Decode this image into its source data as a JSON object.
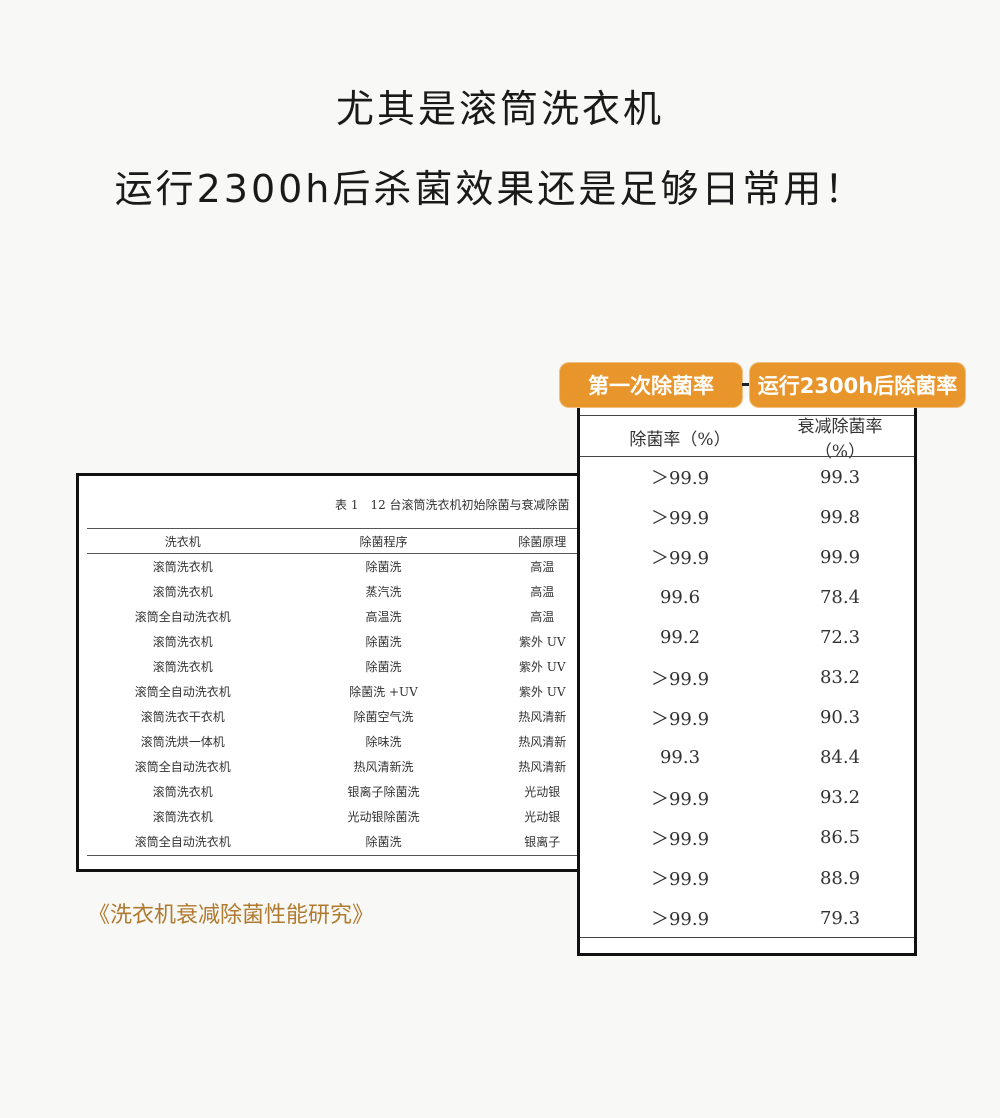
{
  "headline": {
    "line1": "尤其是滚筒洗衣机",
    "line2": "运行2300h后杀菌效果还是足够日常用！"
  },
  "accent_color": "#e8962c",
  "left_table": {
    "caption": "表 1　12 台滚筒洗衣机初始除菌与衰减除菌",
    "headers": [
      "洗衣机",
      "除菌程序",
      "除菌原理"
    ],
    "rows": [
      [
        "滚筒洗衣机",
        "除菌洗",
        "高温"
      ],
      [
        "滚筒洗衣机",
        "蒸汽洗",
        "高温"
      ],
      [
        "滚筒全自动洗衣机",
        "高温洗",
        "高温"
      ],
      [
        "滚筒洗衣机",
        "除菌洗",
        "紫外 UV"
      ],
      [
        "滚筒洗衣机",
        "除菌洗",
        "紫外 UV"
      ],
      [
        "滚筒全自动洗衣机",
        "除菌洗 +UV",
        "紫外 UV"
      ],
      [
        "滚筒洗衣干衣机",
        "除菌空气洗",
        "热风清新"
      ],
      [
        "滚筒洗烘一体机",
        "除味洗",
        "热风清新"
      ],
      [
        "滚筒全自动洗衣机",
        "热风清新洗",
        "热风清新"
      ],
      [
        "滚筒洗衣机",
        "银离子除菌洗",
        "光动银"
      ],
      [
        "滚筒洗衣机",
        "光动银除菌洗",
        "光动银"
      ],
      [
        "滚筒全自动洗衣机",
        "除菌洗",
        "银离子"
      ]
    ]
  },
  "tags": {
    "first": "第一次除菌率",
    "after": "运行2300h后除菌率"
  },
  "right_table": {
    "headers": [
      "除菌率（%）",
      "衰减除菌率（%）"
    ],
    "rows": [
      [
        "＞99.9",
        "99.3"
      ],
      [
        "＞99.9",
        "99.8"
      ],
      [
        "＞99.9",
        "99.9"
      ],
      [
        "99.6",
        "78.4"
      ],
      [
        "99.2",
        "72.3"
      ],
      [
        "＞99.9",
        "83.2"
      ],
      [
        "＞99.9",
        "90.3"
      ],
      [
        "99.3",
        "84.4"
      ],
      [
        "＞99.9",
        "93.2"
      ],
      [
        "＞99.9",
        "86.5"
      ],
      [
        "＞99.9",
        "88.9"
      ],
      [
        "＞99.9",
        "79.3"
      ]
    ]
  },
  "source": "《洗衣机衰减除菌性能研究》"
}
